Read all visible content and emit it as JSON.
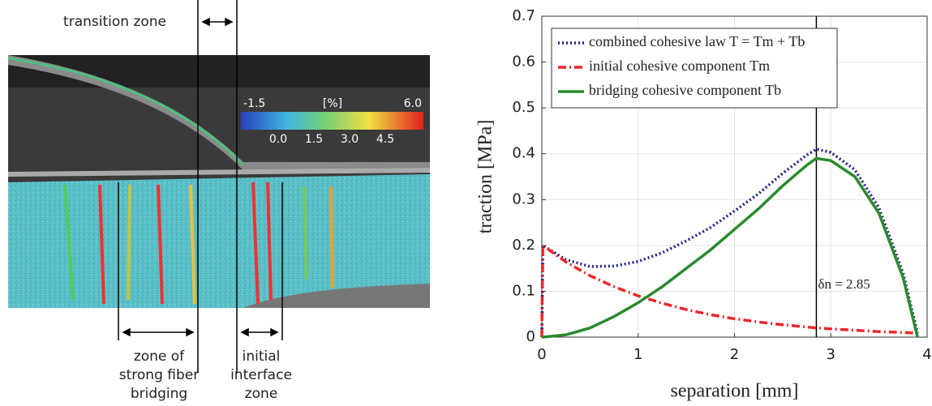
{
  "image_panel": {
    "transition_label": "transition zone",
    "colorbar": {
      "min_label": "-1.5",
      "unit": "[%]",
      "max_label": "6.0",
      "tick_labels": [
        "0.0",
        "1.5",
        "3.0",
        "4.5"
      ]
    },
    "bridging_label": [
      "zone of",
      "strong fiber",
      "bridging"
    ],
    "interface_label": [
      "initial",
      "interface",
      "zone"
    ]
  },
  "chart_data": {
    "type": "line",
    "x_label": "separation [mm]",
    "y_label": "traction [MPa]",
    "x": [
      0,
      0.01,
      0.25,
      0.5,
      0.75,
      1,
      1.25,
      1.5,
      1.75,
      2,
      2.25,
      2.5,
      2.75,
      2.85,
      3,
      3.25,
      3.5,
      3.75,
      3.9
    ],
    "series": [
      {
        "name": "combined cohesive law T = Tm + Tb",
        "color": "#1f1f8f",
        "dash": "dot",
        "values": [
          0,
          0.2,
          0.169,
          0.154,
          0.155,
          0.165,
          0.184,
          0.21,
          0.239,
          0.275,
          0.313,
          0.357,
          0.397,
          0.41,
          0.403,
          0.365,
          0.282,
          0.14,
          0.009
        ]
      },
      {
        "name": "initial cohesive component Tm",
        "color": "#e8282b",
        "dash": "dashdot",
        "values": [
          0,
          0.2,
          0.164,
          0.134,
          0.11,
          0.09,
          0.074,
          0.06,
          0.049,
          0.04,
          0.033,
          0.027,
          0.022,
          0.02,
          0.018,
          0.015,
          0.012,
          0.01,
          0.009
        ]
      },
      {
        "name": "bridging cohesive component Tb",
        "color": "#2a8a2f",
        "dash": "solid",
        "values": [
          0,
          0,
          0.005,
          0.02,
          0.045,
          0.075,
          0.11,
          0.15,
          0.19,
          0.235,
          0.28,
          0.33,
          0.375,
          0.39,
          0.385,
          0.35,
          0.27,
          0.13,
          0
        ]
      }
    ],
    "vline": 2.85,
    "annotation": "δn = 2.85",
    "xlim": [
      0,
      4
    ],
    "ylim": [
      0,
      0.7
    ],
    "xticks": [
      0,
      1,
      2,
      3,
      4
    ],
    "yticks": [
      0,
      0.1,
      0.2,
      0.3,
      0.4,
      0.5,
      0.6,
      0.7
    ],
    "grid": true,
    "legend": "upper left"
  }
}
